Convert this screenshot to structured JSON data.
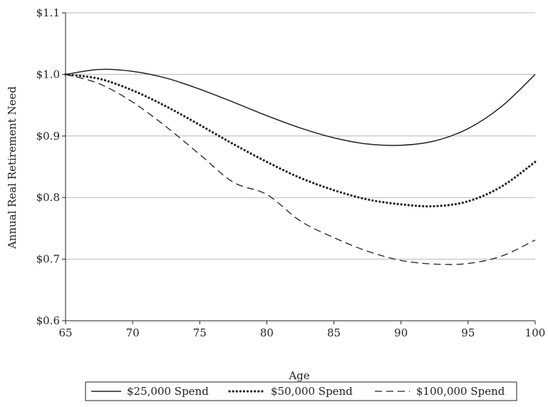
{
  "chart_data": {
    "type": "line",
    "title": "",
    "xlabel": "Age",
    "ylabel": "Annual Real Retirement  Need",
    "xlim": [
      65,
      100
    ],
    "ylim": [
      0.6,
      1.1
    ],
    "xticks": [
      65,
      70,
      75,
      80,
      85,
      90,
      95,
      100
    ],
    "xtick_labels": [
      "65",
      "70",
      "75",
      "80",
      "85",
      "90",
      "95",
      "100"
    ],
    "yticks": [
      0.6,
      0.7,
      0.8,
      0.9,
      1.0,
      1.1
    ],
    "ytick_labels": [
      "$0.6",
      "$0.7",
      "$0.8",
      "$0.9",
      "$1.0",
      "$1.1"
    ],
    "grid": "horizontal",
    "legend_position": "bottom",
    "x": [
      65,
      67.5,
      70,
      72.5,
      75,
      77.5,
      80,
      82.5,
      85,
      87.5,
      90,
      92.5,
      95,
      97.5,
      100
    ],
    "series": [
      {
        "name": "$25,000 Spend",
        "line_style": "solid",
        "color": "#222222",
        "values": [
          1.0,
          1.008,
          1.005,
          0.994,
          0.976,
          0.955,
          0.933,
          0.913,
          0.897,
          0.887,
          0.885,
          0.892,
          0.912,
          0.948,
          1.0
        ]
      },
      {
        "name": "$50,000 Spend",
        "line_style": "dotted",
        "color": "#222222",
        "values": [
          1.0,
          0.993,
          0.974,
          0.948,
          0.918,
          0.887,
          0.858,
          0.832,
          0.812,
          0.797,
          0.789,
          0.786,
          0.794,
          0.818,
          0.858
        ]
      },
      {
        "name": "$100,000 Spend",
        "line_style": "dashed",
        "color": "#222222",
        "values": [
          1.0,
          0.985,
          0.955,
          0.915,
          0.87,
          0.825,
          0.805,
          0.762,
          0.735,
          0.713,
          0.698,
          0.692,
          0.693,
          0.705,
          0.731
        ]
      }
    ]
  }
}
